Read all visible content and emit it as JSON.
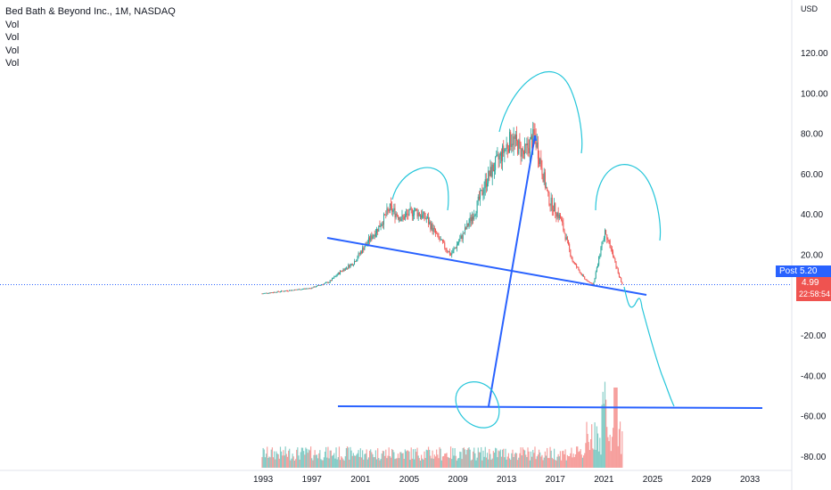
{
  "legend": {
    "symbol": "Bed Bath & Beyond Inc., 1M, NASDAQ",
    "indicators": [
      "Vol",
      "Vol",
      "Vol",
      "Vol"
    ]
  },
  "axis": {
    "currency": "USD"
  },
  "post_tag": {
    "label": "Post",
    "value": "5.20"
  },
  "price_tag": {
    "price": "4.99",
    "countdown": "22:58:54"
  },
  "colors": {
    "up": "#26a69a",
    "down": "#ef5350",
    "drawing_blue": "#2962ff",
    "drawing_cyan": "#00bcd4",
    "post_blue": "#2962ff",
    "price_red": "#ef5350"
  },
  "chart_data": {
    "type": "candlestick",
    "title": "Bed Bath & Beyond Inc., 1M, NASDAQ",
    "y_axis": {
      "label": "USD",
      "range": [
        -88,
        132
      ],
      "ticks": [
        "120.00",
        "100.00",
        "80.00",
        "60.00",
        "40.00",
        "20.00",
        "-20.00",
        "-40.00",
        "-60.00",
        "-80.00"
      ],
      "tick_values": [
        120,
        100,
        80,
        60,
        40,
        20,
        -20,
        -40,
        -60,
        -80
      ]
    },
    "x_axis": {
      "range": [
        1992.0,
        2035.5
      ],
      "ticks": [
        "1993",
        "1997",
        "2001",
        "2005",
        "2009",
        "2013",
        "2017",
        "2021",
        "2025",
        "2029",
        "2033"
      ],
      "tick_values": [
        1993,
        1997,
        2001,
        2005,
        2009,
        2013,
        2017,
        2021,
        2025,
        2029,
        2033
      ]
    },
    "price_path": [
      [
        1993.0,
        0.8
      ],
      [
        1995.0,
        2.2
      ],
      [
        1997.0,
        3.5
      ],
      [
        1998.5,
        6.5
      ],
      [
        1999.5,
        12.0
      ],
      [
        2000.5,
        16.0
      ],
      [
        2001.5,
        25.0
      ],
      [
        2002.5,
        33.0
      ],
      [
        2003.5,
        43.0
      ],
      [
        2004.5,
        38.0
      ],
      [
        2005.5,
        42.0
      ],
      [
        2006.5,
        38.0
      ],
      [
        2007.5,
        28.0
      ],
      [
        2008.5,
        20.0
      ],
      [
        2009.5,
        30.0
      ],
      [
        2010.5,
        42.0
      ],
      [
        2011.5,
        58.0
      ],
      [
        2012.5,
        68.0
      ],
      [
        2013.5,
        78.0
      ],
      [
        2014.5,
        70.0
      ],
      [
        2015.4,
        79.0
      ],
      [
        2016.5,
        48.0
      ],
      [
        2017.5,
        38.0
      ],
      [
        2018.5,
        17.0
      ],
      [
        2019.5,
        8.0
      ],
      [
        2020.2,
        5.0
      ],
      [
        2020.8,
        22.0
      ],
      [
        2021.2,
        32.0
      ],
      [
        2021.8,
        20.0
      ],
      [
        2022.3,
        10.0
      ],
      [
        2022.6,
        4.99
      ]
    ],
    "last_price": 4.99,
    "post_market_price": 5.2,
    "volume_note": "monthly volume histogram at bottom, spikes near 2020-2022"
  }
}
